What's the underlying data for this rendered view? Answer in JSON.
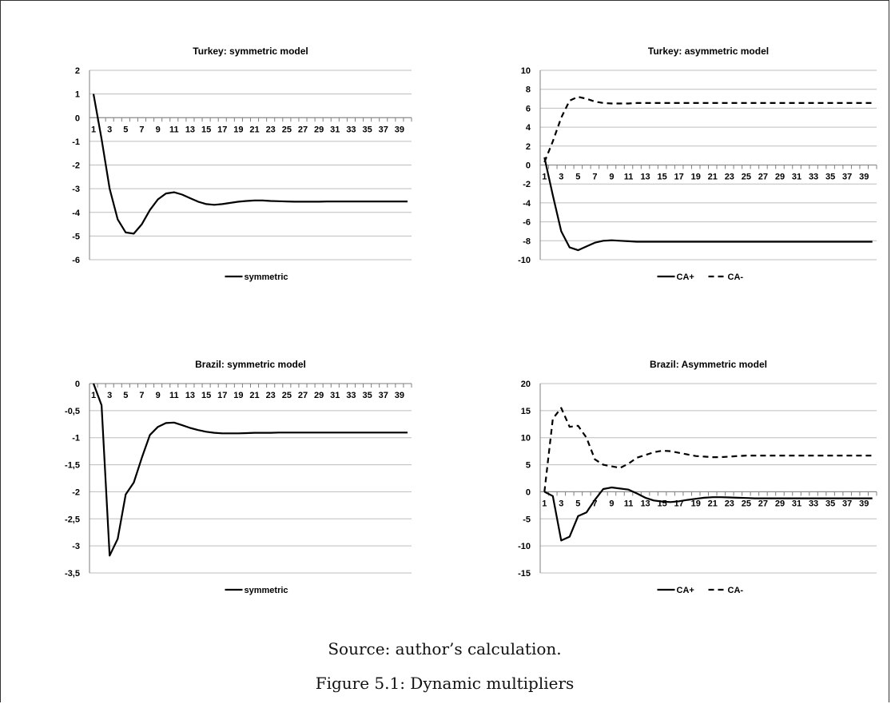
{
  "source_note": "Source: author’s calculation.",
  "figure_caption": "Figure 5.1: Dynamic multipliers",
  "chart_data": [
    {
      "type": "line",
      "title": "Turkey: symmetric model",
      "x": [
        1,
        2,
        3,
        4,
        5,
        6,
        7,
        8,
        9,
        10,
        11,
        12,
        13,
        14,
        15,
        16,
        17,
        18,
        19,
        20,
        21,
        22,
        23,
        24,
        25,
        26,
        27,
        28,
        29,
        30,
        31,
        32,
        33,
        34,
        35,
        36,
        37,
        38,
        39,
        40
      ],
      "xticks": [
        "1",
        "3",
        "5",
        "7",
        "9",
        "11",
        "13",
        "15",
        "17",
        "19",
        "21",
        "23",
        "25",
        "27",
        "29",
        "31",
        "33",
        "35",
        "37",
        "39"
      ],
      "ylim": [
        -6,
        2
      ],
      "yticks": [
        "2",
        "1",
        "0",
        "-1",
        "-2",
        "-3",
        "-4",
        "-5",
        "-6"
      ],
      "grid": true,
      "legend": "bottom",
      "series": [
        {
          "name": "symmetric",
          "style": "solid",
          "values": [
            1,
            -0.9,
            -3,
            -4.3,
            -4.85,
            -4.9,
            -4.5,
            -3.9,
            -3.45,
            -3.2,
            -3.15,
            -3.25,
            -3.4,
            -3.55,
            -3.65,
            -3.68,
            -3.65,
            -3.6,
            -3.55,
            -3.52,
            -3.5,
            -3.5,
            -3.52,
            -3.53,
            -3.54,
            -3.55,
            -3.55,
            -3.55,
            -3.55,
            -3.54,
            -3.54,
            -3.54,
            -3.54,
            -3.54,
            -3.54,
            -3.54,
            -3.54,
            -3.54,
            -3.54,
            -3.54
          ]
        }
      ]
    },
    {
      "type": "line",
      "title": "Turkey: asymmetric model",
      "x": [
        1,
        2,
        3,
        4,
        5,
        6,
        7,
        8,
        9,
        10,
        11,
        12,
        13,
        14,
        15,
        16,
        17,
        18,
        19,
        20,
        21,
        22,
        23,
        24,
        25,
        26,
        27,
        28,
        29,
        30,
        31,
        32,
        33,
        34,
        35,
        36,
        37,
        38,
        39,
        40
      ],
      "xticks": [
        "1",
        "3",
        "5",
        "7",
        "9",
        "11",
        "13",
        "15",
        "17",
        "19",
        "21",
        "23",
        "25",
        "27",
        "29",
        "31",
        "33",
        "35",
        "37",
        "39"
      ],
      "ylim": [
        -10,
        10
      ],
      "yticks": [
        "10",
        "8",
        "6",
        "4",
        "2",
        "0",
        "-2",
        "-4",
        "-6",
        "-8",
        "-10"
      ],
      "grid": true,
      "legend": "bottom",
      "series": [
        {
          "name": "CA+",
          "style": "solid",
          "values": [
            0.8,
            -3.2,
            -7,
            -8.7,
            -9,
            -8.6,
            -8.2,
            -8,
            -7.95,
            -8,
            -8.05,
            -8.1,
            -8.1,
            -8.1,
            -8.1,
            -8.1,
            -8.1,
            -8.1,
            -8.1,
            -8.1,
            -8.1,
            -8.1,
            -8.1,
            -8.1,
            -8.1,
            -8.1,
            -8.1,
            -8.1,
            -8.1,
            -8.1,
            -8.1,
            -8.1,
            -8.1,
            -8.1,
            -8.1,
            -8.1,
            -8.1,
            -8.1,
            -8.1,
            -8.1
          ]
        },
        {
          "name": "CA-",
          "style": "dashed",
          "values": [
            0.3,
            2.5,
            5,
            6.8,
            7.2,
            7,
            6.7,
            6.55,
            6.5,
            6.5,
            6.5,
            6.55,
            6.55,
            6.55,
            6.55,
            6.55,
            6.55,
            6.55,
            6.55,
            6.55,
            6.55,
            6.55,
            6.55,
            6.55,
            6.55,
            6.55,
            6.55,
            6.55,
            6.55,
            6.55,
            6.55,
            6.55,
            6.55,
            6.55,
            6.55,
            6.55,
            6.55,
            6.55,
            6.55,
            6.55
          ]
        }
      ]
    },
    {
      "type": "line",
      "title": "Brazil: symmetric model",
      "x": [
        1,
        2,
        3,
        4,
        5,
        6,
        7,
        8,
        9,
        10,
        11,
        12,
        13,
        14,
        15,
        16,
        17,
        18,
        19,
        20,
        21,
        22,
        23,
        24,
        25,
        26,
        27,
        28,
        29,
        30,
        31,
        32,
        33,
        34,
        35,
        36,
        37,
        38,
        39,
        40
      ],
      "xticks": [
        "1",
        "3",
        "5",
        "7",
        "9",
        "11",
        "13",
        "15",
        "17",
        "19",
        "21",
        "23",
        "25",
        "27",
        "29",
        "31",
        "33",
        "35",
        "37",
        "39"
      ],
      "ylim": [
        -3.5,
        0
      ],
      "yticks": [
        "0",
        "-0,5",
        "-1",
        "-1,5",
        "-2",
        "-2,5",
        "-3",
        "-3,5"
      ],
      "grid": true,
      "legend": "bottom",
      "series": [
        {
          "name": "symmetric",
          "style": "solid",
          "values": [
            0,
            -0.4,
            -3.18,
            -2.87,
            -2.05,
            -1.83,
            -1.37,
            -0.95,
            -0.8,
            -0.73,
            -0.72,
            -0.77,
            -0.82,
            -0.86,
            -0.89,
            -0.91,
            -0.92,
            -0.92,
            -0.92,
            -0.915,
            -0.91,
            -0.91,
            -0.91,
            -0.905,
            -0.905,
            -0.905,
            -0.905,
            -0.905,
            -0.905,
            -0.905,
            -0.905,
            -0.905,
            -0.905,
            -0.905,
            -0.905,
            -0.905,
            -0.905,
            -0.905,
            -0.905,
            -0.905
          ]
        }
      ]
    },
    {
      "type": "line",
      "title": "Brazil: Asymmetric model",
      "x": [
        1,
        2,
        3,
        4,
        5,
        6,
        7,
        8,
        9,
        10,
        11,
        12,
        13,
        14,
        15,
        16,
        17,
        18,
        19,
        20,
        21,
        22,
        23,
        24,
        25,
        26,
        27,
        28,
        29,
        30,
        31,
        32,
        33,
        34,
        35,
        36,
        37,
        38,
        39,
        40
      ],
      "xticks": [
        "1",
        "3",
        "5",
        "7",
        "9",
        "11",
        "13",
        "15",
        "17",
        "19",
        "21",
        "23",
        "25",
        "27",
        "29",
        "31",
        "33",
        "35",
        "37",
        "39"
      ],
      "ylim": [
        -15,
        20
      ],
      "yticks": [
        "20",
        "15",
        "10",
        "5",
        "0",
        "-5",
        "-10",
        "-15"
      ],
      "grid": true,
      "legend": "bottom",
      "series": [
        {
          "name": "CA+",
          "style": "solid",
          "values": [
            0,
            -0.8,
            -9,
            -8.3,
            -4.5,
            -3.8,
            -1.5,
            0.5,
            0.8,
            0.6,
            0.4,
            -0.3,
            -1.1,
            -1.6,
            -1.8,
            -1.9,
            -1.75,
            -1.5,
            -1.3,
            -1.1,
            -1,
            -1,
            -1.05,
            -1.1,
            -1.15,
            -1.2,
            -1.2,
            -1.2,
            -1.2,
            -1.2,
            -1.2,
            -1.2,
            -1.2,
            -1.2,
            -1.2,
            -1.2,
            -1.2,
            -1.2,
            -1.2,
            -1.2
          ]
        },
        {
          "name": "CA-",
          "style": "dashed",
          "values": [
            0,
            13.5,
            15.5,
            12,
            12.2,
            10,
            6,
            5,
            4.7,
            4.4,
            5.2,
            6.3,
            6.8,
            7.3,
            7.6,
            7.5,
            7.2,
            6.9,
            6.6,
            6.5,
            6.4,
            6.4,
            6.5,
            6.6,
            6.7,
            6.7,
            6.7,
            6.7,
            6.7,
            6.7,
            6.7,
            6.7,
            6.7,
            6.7,
            6.7,
            6.7,
            6.7,
            6.7,
            6.7,
            6.7
          ]
        }
      ]
    }
  ]
}
